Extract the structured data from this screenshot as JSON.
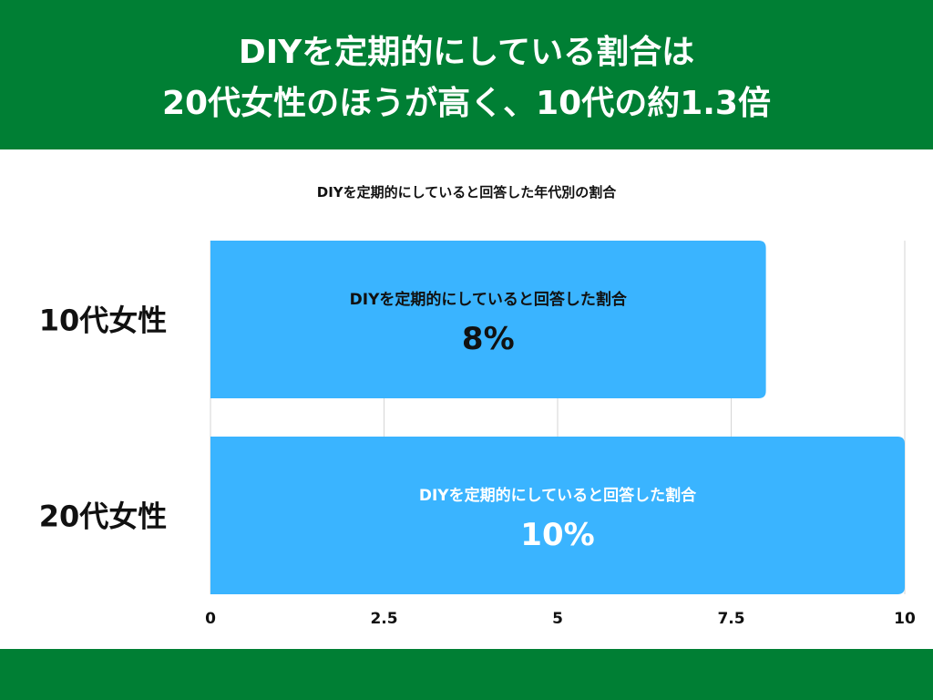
{
  "header": {
    "line1": "DIYを定期的にしている割合は",
    "line2": "20代女性のほうが高く、10代の約1.3倍",
    "background": "#007F34"
  },
  "footer": {
    "background": "#007F34"
  },
  "chart_data": {
    "type": "bar",
    "orientation": "horizontal",
    "title": "DIYを定期的にしていると回答した年代別の割合",
    "categories": [
      "10代女性",
      "20代女性"
    ],
    "series": [
      {
        "name": "DIYを定期的にしていると回答した割合",
        "values": [
          8,
          10
        ],
        "value_labels": [
          "8%",
          "10%"
        ],
        "color": "#3AB4FF",
        "label_colors": [
          "#111111",
          "#ffffff"
        ]
      }
    ],
    "xlim": [
      0,
      10
    ],
    "x_ticks": [
      0,
      2.5,
      5,
      7.5,
      10
    ],
    "x_tick_labels": [
      "0",
      "2.5",
      "5",
      "7.5",
      "10"
    ],
    "xlabel": "",
    "ylabel": "",
    "grid": true,
    "legend": "none"
  }
}
